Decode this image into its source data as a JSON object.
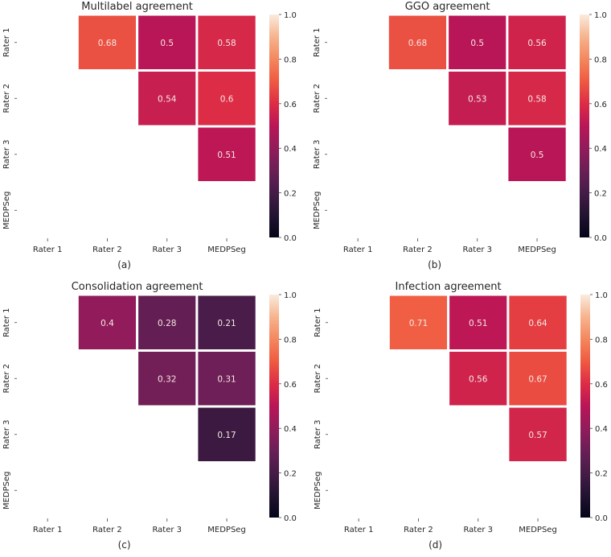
{
  "chart_data": [
    {
      "type": "heatmap",
      "title": "Multilabel agreement",
      "caption": "(a)",
      "x_categories": [
        "Rater 1",
        "Rater 2",
        "Rater 3",
        "MEDPSeg"
      ],
      "y_categories": [
        "Rater 1",
        "Rater 2",
        "Rater 3",
        "MEDPSeg"
      ],
      "values": [
        [
          null,
          0.68,
          0.5,
          0.58
        ],
        [
          null,
          null,
          0.54,
          0.6
        ],
        [
          null,
          null,
          null,
          0.51
        ],
        [
          null,
          null,
          null,
          null
        ]
      ],
      "labels": [
        [
          null,
          "0.68",
          "0.5",
          "0.58"
        ],
        [
          null,
          null,
          "0.54",
          "0.6"
        ],
        [
          null,
          null,
          null,
          "0.51"
        ],
        [
          null,
          null,
          null,
          null
        ]
      ],
      "colorbar": {
        "range": [
          0,
          1
        ],
        "ticks": [
          "0.0",
          "0.2",
          "0.4",
          "0.6",
          "0.8",
          "1.0"
        ]
      }
    },
    {
      "type": "heatmap",
      "title": "GGO agreement",
      "caption": "(b)",
      "x_categories": [
        "Rater 1",
        "Rater 2",
        "Rater 3",
        "MEDPSeg"
      ],
      "y_categories": [
        "Rater 1",
        "Rater 2",
        "Rater 3",
        "MEDPSeg"
      ],
      "values": [
        [
          null,
          0.68,
          0.5,
          0.56
        ],
        [
          null,
          null,
          0.53,
          0.58
        ],
        [
          null,
          null,
          null,
          0.5
        ],
        [
          null,
          null,
          null,
          null
        ]
      ],
      "labels": [
        [
          null,
          "0.68",
          "0.5",
          "0.56"
        ],
        [
          null,
          null,
          "0.53",
          "0.58"
        ],
        [
          null,
          null,
          null,
          "0.5"
        ],
        [
          null,
          null,
          null,
          null
        ]
      ],
      "colorbar": {
        "range": [
          0,
          1
        ],
        "ticks": [
          "0.0",
          "0.2",
          "0.4",
          "0.6",
          "0.8",
          "1.0"
        ]
      }
    },
    {
      "type": "heatmap",
      "title": "Consolidation agreement",
      "caption": "(c)",
      "x_categories": [
        "Rater 1",
        "Rater 2",
        "Rater 3",
        "MEDPSeg"
      ],
      "y_categories": [
        "Rater 1",
        "Rater 2",
        "Rater 3",
        "MEDPSeg"
      ],
      "values": [
        [
          null,
          0.4,
          0.28,
          0.21
        ],
        [
          null,
          null,
          0.32,
          0.31
        ],
        [
          null,
          null,
          null,
          0.17
        ],
        [
          null,
          null,
          null,
          null
        ]
      ],
      "labels": [
        [
          null,
          "0.4",
          "0.28",
          "0.21"
        ],
        [
          null,
          null,
          "0.32",
          "0.31"
        ],
        [
          null,
          null,
          null,
          "0.17"
        ],
        [
          null,
          null,
          null,
          null
        ]
      ],
      "colorbar": {
        "range": [
          0,
          1
        ],
        "ticks": [
          "0.0",
          "0.2",
          "0.4",
          "0.6",
          "0.8",
          "1.0"
        ]
      }
    },
    {
      "type": "heatmap",
      "title": "Infection agreement",
      "caption": "(d)",
      "x_categories": [
        "Rater 1",
        "Rater 2",
        "Rater 3",
        "MEDPSeg"
      ],
      "y_categories": [
        "Rater 1",
        "Rater 2",
        "Rater 3",
        "MEDPSeg"
      ],
      "values": [
        [
          null,
          0.71,
          0.51,
          0.64
        ],
        [
          null,
          null,
          0.56,
          0.67
        ],
        [
          null,
          null,
          null,
          0.57
        ],
        [
          null,
          null,
          null,
          null
        ]
      ],
      "labels": [
        [
          null,
          "0.71",
          "0.51",
          "0.64"
        ],
        [
          null,
          null,
          "0.56",
          "0.67"
        ],
        [
          null,
          null,
          null,
          "0.57"
        ],
        [
          null,
          null,
          null,
          null
        ]
      ],
      "colorbar": {
        "range": [
          0,
          1
        ],
        "ticks": [
          "0.0",
          "0.2",
          "0.4",
          "0.6",
          "0.8",
          "1.0"
        ]
      }
    }
  ]
}
